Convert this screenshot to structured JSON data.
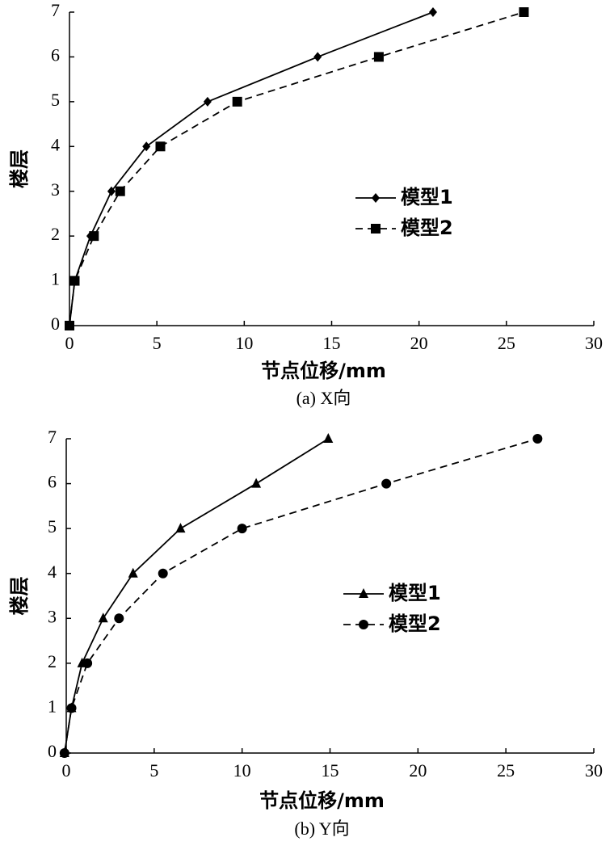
{
  "chart_data": [
    {
      "type": "line",
      "xlabel": "节点位移/mm",
      "ylabel": "楼层",
      "caption": "(a) X向",
      "xlim": [
        0,
        30
      ],
      "xticks": [
        0,
        5,
        10,
        15,
        20,
        25,
        30
      ],
      "ylim": [
        0,
        7
      ],
      "yticks": [
        0,
        1,
        2,
        3,
        4,
        5,
        6,
        7
      ],
      "series": [
        {
          "name": "模型1",
          "color": "#000000",
          "marker": "diamond",
          "dashed": false,
          "x": [
            0,
            0.3,
            1.2,
            2.4,
            4.4,
            7.9,
            14.2,
            20.8
          ],
          "values": [
            0,
            1,
            2,
            3,
            4,
            5,
            6,
            7
          ]
        },
        {
          "name": "模型2",
          "color": "#000000",
          "marker": "square",
          "dashed": true,
          "x": [
            0,
            0.3,
            1.4,
            2.9,
            5.2,
            9.6,
            17.7,
            26.0
          ],
          "values": [
            0,
            1,
            2,
            3,
            4,
            5,
            6,
            7
          ]
        }
      ]
    },
    {
      "type": "line",
      "xlabel": "节点位移/mm",
      "ylabel": "楼层",
      "caption": "(b) Y向",
      "xlim": [
        0,
        30
      ],
      "xticks": [
        0,
        5,
        10,
        15,
        20,
        25,
        30
      ],
      "ylim": [
        0,
        7
      ],
      "yticks": [
        0,
        1,
        2,
        3,
        4,
        5,
        6,
        7
      ],
      "series": [
        {
          "name": "模型1",
          "color": "#000000",
          "marker": "triangle",
          "dashed": false,
          "x": [
            -0.1,
            0.3,
            0.9,
            2.1,
            3.8,
            6.5,
            10.8,
            14.9
          ],
          "values": [
            0,
            1,
            2,
            3,
            4,
            5,
            6,
            7
          ]
        },
        {
          "name": "模型2",
          "color": "#000000",
          "marker": "circle",
          "dashed": true,
          "x": [
            -0.1,
            0.3,
            1.2,
            3.0,
            5.5,
            10.0,
            18.2,
            26.8
          ],
          "values": [
            0,
            1,
            2,
            3,
            4,
            5,
            6,
            7
          ]
        }
      ]
    }
  ]
}
